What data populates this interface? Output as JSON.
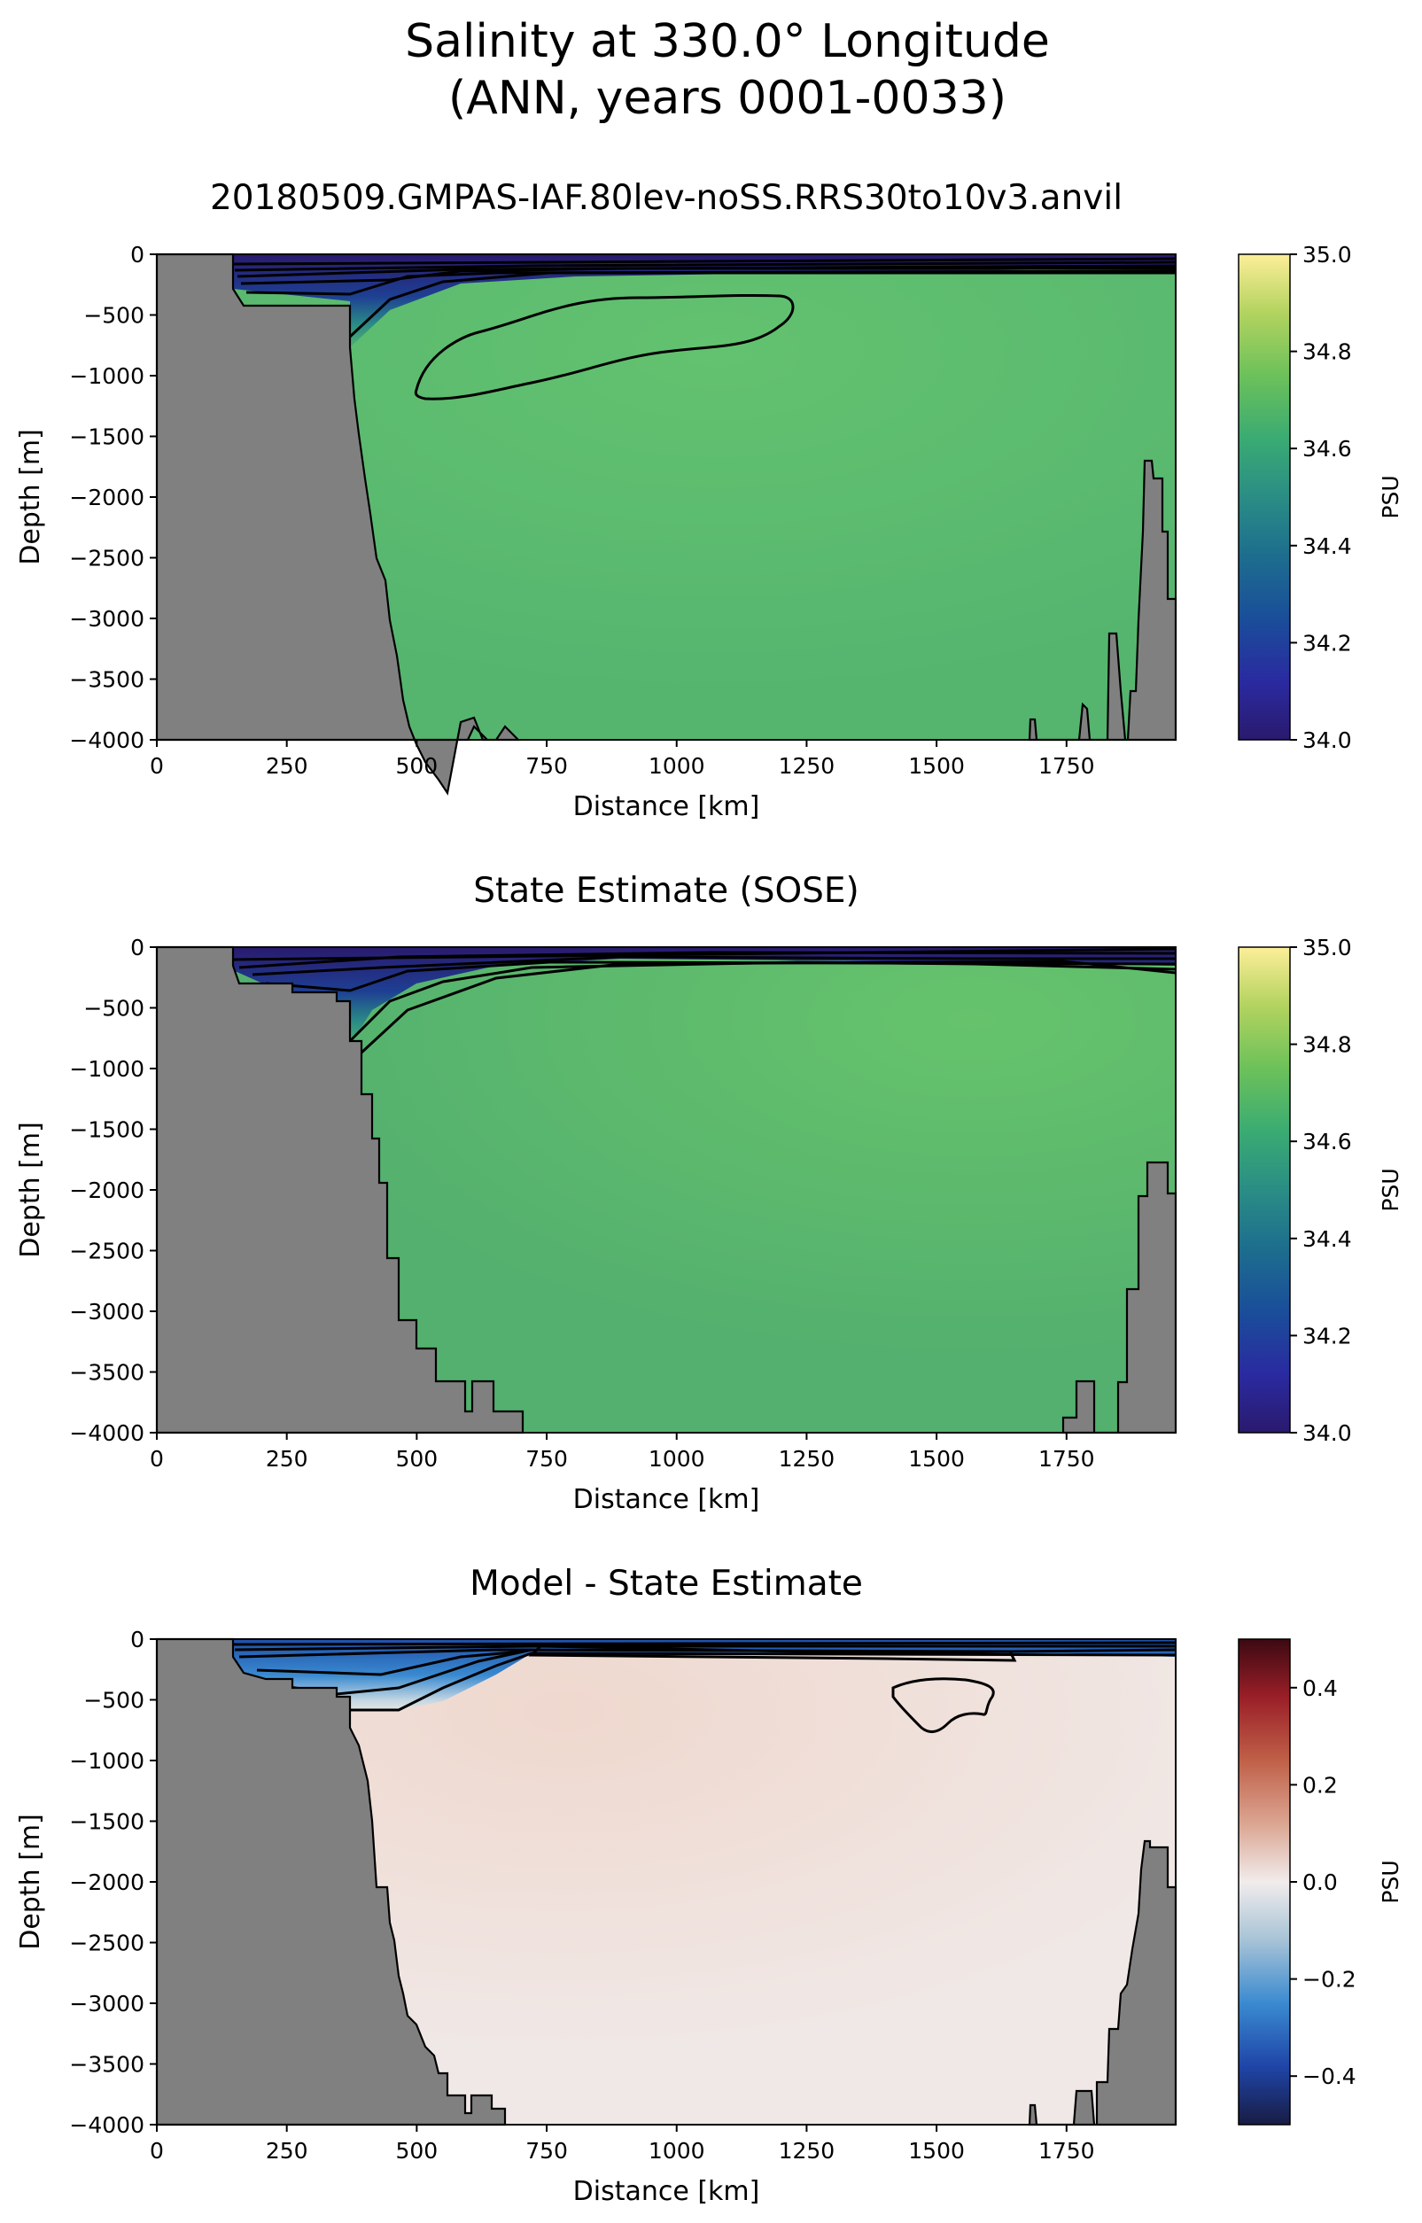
{
  "figure": {
    "title_line1": "Salinity at 330.0° Longitude",
    "title_line2": "(ANN, years 0001-0033)"
  },
  "chart_data": [
    {
      "type": "heatmap",
      "title": "20180509.GMPAS-IAF.80lev-noSS.RRS30to10v3.anvil",
      "xlabel": "Distance [km]",
      "ylabel": "Depth [m]",
      "xlim": [
        0,
        1960
      ],
      "ylim": [
        -4000,
        0
      ],
      "xticks": [
        0,
        250,
        500,
        750,
        1000,
        1250,
        1500,
        1750
      ],
      "yticks": [
        0,
        -500,
        -1000,
        -1500,
        -2000,
        -2500,
        -3000,
        -3500,
        -4000
      ],
      "colorbar": {
        "label": "PSU",
        "colormap": "haline",
        "range": [
          34.0,
          35.0
        ],
        "ticks": [
          34.0,
          34.2,
          34.4,
          34.6,
          34.8,
          35.0
        ]
      },
      "interior_value_psu": 34.68,
      "fresh_surface_layer_psu": 34.05,
      "contour_shallow_deep_boundary_km": [
        150,
        1960
      ],
      "contour_closed_loop_km_depth": [
        [
          600,
          -1100
        ],
        [
          650,
          -850
        ],
        [
          900,
          -550
        ],
        [
          1120,
          -400
        ],
        [
          1230,
          -460
        ],
        [
          1150,
          -760
        ],
        [
          800,
          -1000
        ],
        [
          630,
          -1190
        ]
      ]
    },
    {
      "type": "heatmap",
      "title": "State Estimate (SOSE)",
      "xlabel": "Distance [km]",
      "ylabel": "Depth [m]",
      "xlim": [
        0,
        1960
      ],
      "ylim": [
        -4000,
        0
      ],
      "xticks": [
        0,
        250,
        500,
        750,
        1000,
        1250,
        1500,
        1750
      ],
      "yticks": [
        0,
        -500,
        -1000,
        -1500,
        -2000,
        -2500,
        -3000,
        -3500,
        -4000
      ],
      "colorbar": {
        "label": "PSU",
        "colormap": "haline",
        "range": [
          34.0,
          35.0
        ],
        "ticks": [
          34.0,
          34.2,
          34.4,
          34.6,
          34.8,
          35.0
        ]
      },
      "interior_value_psu": 34.66,
      "fresh_surface_layer_psu": 34.1
    },
    {
      "type": "heatmap",
      "title": "Model - State Estimate",
      "xlabel": "Distance [km]",
      "ylabel": "Depth [m]",
      "xlim": [
        0,
        1960
      ],
      "ylim": [
        -4000,
        0
      ],
      "xticks": [
        0,
        250,
        500,
        750,
        1000,
        1250,
        1500,
        1750
      ],
      "yticks": [
        0,
        -500,
        -1000,
        -1500,
        -2000,
        -2500,
        -3000,
        -3500,
        -4000
      ],
      "colorbar": {
        "label": "PSU",
        "colormap": "balance",
        "range": [
          -0.5,
          0.5
        ],
        "ticks": [
          0.4,
          0.2,
          0.0,
          -0.2,
          -0.4
        ]
      },
      "interior_value_psu": 0.03,
      "surface_bias_psu": -0.35,
      "contour_closed_loop_km_depth": [
        [
          1430,
          -400
        ],
        [
          1500,
          -360
        ],
        [
          1600,
          -420
        ],
        [
          1590,
          -640
        ],
        [
          1500,
          -700
        ],
        [
          1440,
          -560
        ]
      ]
    }
  ],
  "colors": {
    "land": "#808080",
    "haline_interior_model": "#5dbe71",
    "haline_interior_sose": "#58b66e",
    "haline_fresh": "#2a1a6e",
    "diff_interior": "#f1e3dd",
    "diff_negative": "#2f7fc4"
  }
}
